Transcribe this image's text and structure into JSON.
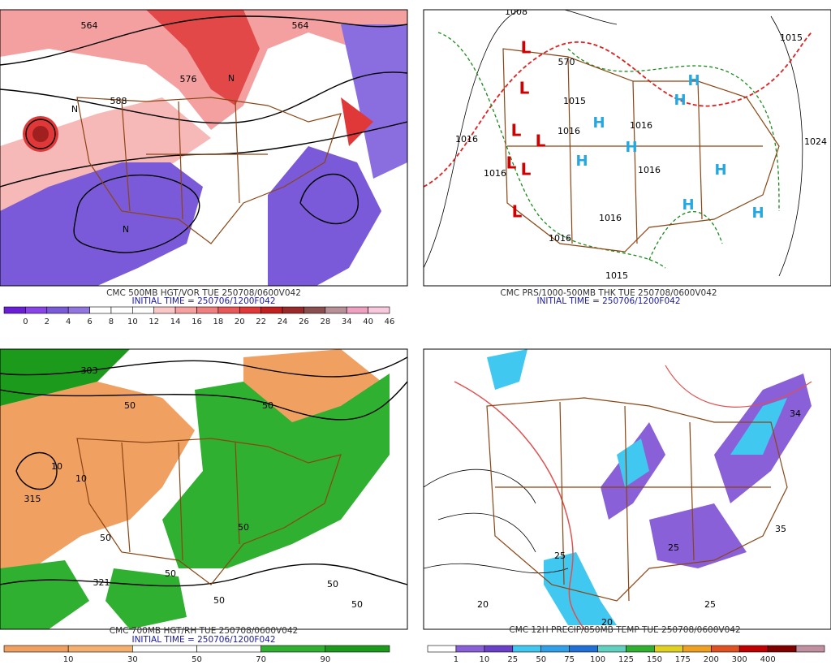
{
  "panels": [
    {
      "caption": "CMC 500MB HGT/VOR TUE 250708/0600V042",
      "initial": "INITIAL TIME = 250706/1200F042",
      "colorbar": {
        "colors": [
          "#6a1fd6",
          "#8a45e8",
          "#7a5ad8",
          "#9276e0",
          "#ffffff",
          "#ffffff",
          "#ffffff",
          "#fbc8c8",
          "#f7a0a0",
          "#f08080",
          "#e85858",
          "#e03838",
          "#c02020",
          "#9a2a2a",
          "#8a5050",
          "#b89098",
          "#f0a0c0",
          "#f8c8dc"
        ],
        "labels": [
          0,
          2,
          4,
          6,
          8,
          10,
          12,
          14,
          16,
          18,
          20,
          22,
          24,
          26,
          28,
          34,
          40,
          46
        ]
      },
      "map_labels": [
        "564",
        "564",
        "576",
        "588",
        "N",
        "N",
        "N"
      ]
    },
    {
      "caption": "CMC PRS/1000-500MB THK TUE 250708/0600V042",
      "initial": "INITIAL TIME = 250706/1200F042",
      "map_labels": [
        "1008",
        "1015",
        "570",
        "1015",
        "1016",
        "1016",
        "1016",
        "1016",
        "1016",
        "1016",
        "1016",
        "1024",
        "1015",
        "L",
        "L",
        "L",
        "L",
        "L",
        "L",
        "L",
        "H",
        "H",
        "H",
        "H",
        "H",
        "H",
        "H",
        "H"
      ]
    },
    {
      "caption": "CMC 700MB HGT/RH TUE 250708/0600V042",
      "initial": "INITIAL TIME = 250706/1200F042",
      "colorbar": {
        "colors": [
          "#f0a060",
          "#f5b070",
          "#ffffff",
          "#ffffff",
          "#30b030",
          "#1c9a1c"
        ],
        "labels": [
          10,
          30,
          50,
          70,
          90
        ]
      },
      "map_labels": [
        "303",
        "50",
        "10",
        "10",
        "315",
        "50",
        "50",
        "50",
        "50",
        "321",
        "50",
        "50",
        "50"
      ]
    },
    {
      "caption": "CMC 12H PRECIP/850MB TEMP TUE 250708/0600V042",
      "colorbar": {
        "colors": [
          "#ffffff",
          "#8a60d8",
          "#6a40c8",
          "#40c8f0",
          "#30a0e8",
          "#2070d8",
          "#60d0c0",
          "#30b030",
          "#e0d020",
          "#f0a020",
          "#e05020",
          "#c00000",
          "#800000",
          "#c090a0"
        ],
        "labels": [
          1,
          10,
          25,
          50,
          75,
          100,
          125,
          150,
          175,
          200,
          300,
          400
        ]
      },
      "map_labels": [
        "20",
        "20",
        "25",
        "25",
        "25",
        "35",
        "34"
      ]
    }
  ]
}
